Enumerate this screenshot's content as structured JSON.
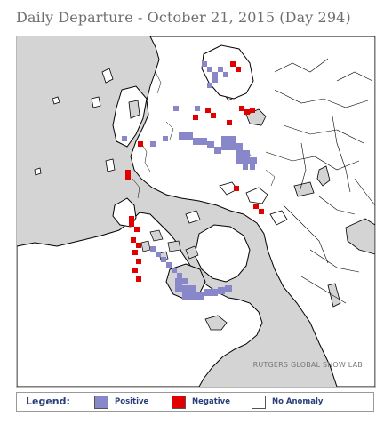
{
  "title": "Daily Departure - October 21, 2015 (Day 294)",
  "map": {
    "projection": "north-polar",
    "credit": "RUTGERS GLOBAL SNOW LAB",
    "colors": {
      "ocean": "#d4d4d4",
      "land": "#ffffff",
      "coastline": "#000000",
      "positive": "#8787c9",
      "negative": "#e00000"
    }
  },
  "legend": {
    "title": "Legend:",
    "items": [
      {
        "key": "positive",
        "label": "Positive",
        "color": "#8787c9"
      },
      {
        "key": "negative",
        "label": "Negative",
        "color": "#e00000"
      },
      {
        "key": "none",
        "label": "No Anomaly",
        "color": "#ffffff"
      }
    ]
  }
}
